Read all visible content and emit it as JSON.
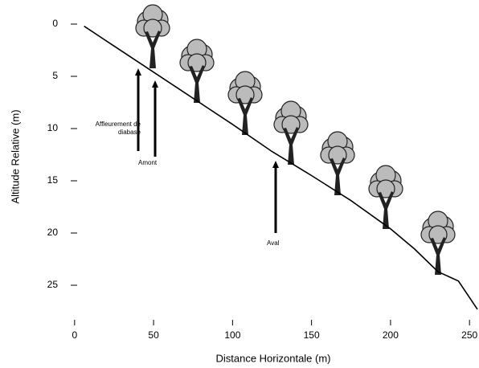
{
  "chart_data": {
    "type": "line",
    "x_label": "Distance Horizontale (m)",
    "y_label": "Altitude Relative (m)",
    "x": [
      6,
      25,
      50,
      75,
      100,
      125,
      150,
      175,
      200,
      215,
      230,
      243,
      255
    ],
    "values": [
      0.2,
      2.1,
      4.6,
      7.1,
      9.6,
      12.2,
      14.5,
      16.9,
      19.6,
      21.5,
      23.7,
      24.6,
      27.3
    ],
    "color": "#000000",
    "xlim": [
      -5,
      255
    ],
    "xticks": [
      0,
      50,
      100,
      150,
      200,
      250
    ],
    "ylim": [
      28,
      -2
    ],
    "yticks": [
      0,
      5,
      10,
      15,
      20,
      25
    ],
    "annotations": [
      {
        "text": "Affleurement de diabase"
      },
      {
        "text": "Amont"
      },
      {
        "text": "Aval"
      }
    ]
  }
}
